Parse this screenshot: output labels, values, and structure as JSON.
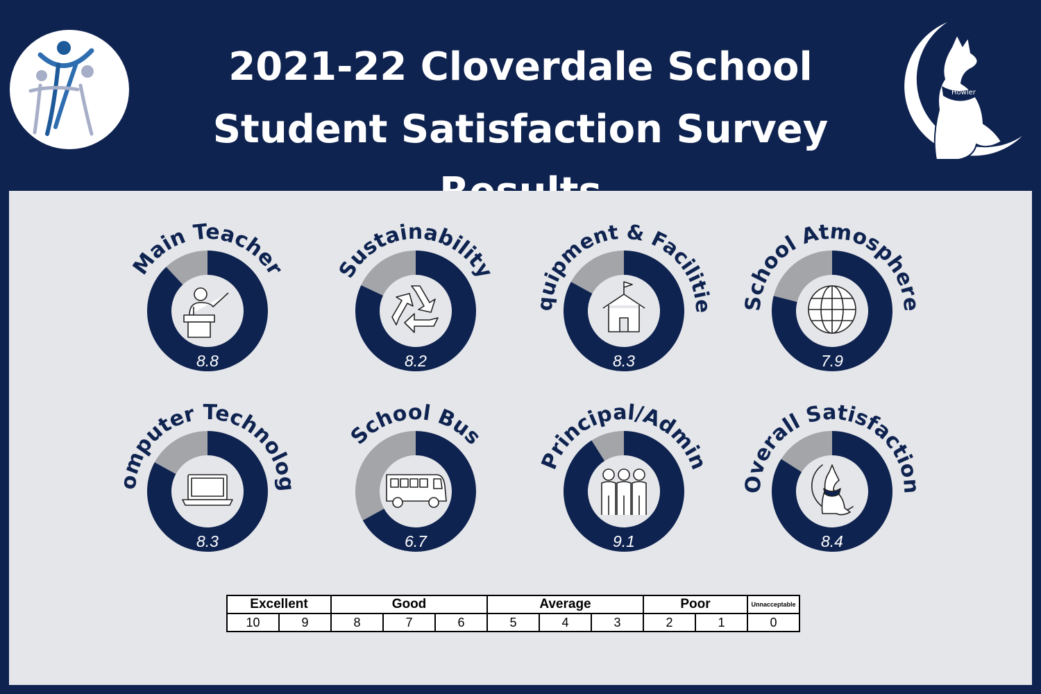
{
  "header": {
    "title_line1": "2021-22 Cloverdale School",
    "title_line2": "Student Satisfaction Survey Results",
    "mascot_label": "Howler"
  },
  "colors": {
    "navy": "#0f2350",
    "gray": "#a3a5a8",
    "panel": "#e4e6ea",
    "white": "#ffffff"
  },
  "chart_data": {
    "type": "pie",
    "max": 10,
    "items": [
      {
        "label": "Main Teacher",
        "value": 8.8,
        "icon": "teacher-icon"
      },
      {
        "label": "Sustainability",
        "value": 8.2,
        "icon": "recycle-icon"
      },
      {
        "label": "Equipment & Facilities",
        "value": 8.3,
        "icon": "schoolhouse-icon"
      },
      {
        "label": "School Atmosphere",
        "value": 7.9,
        "icon": "globe-icon"
      },
      {
        "label": "Computer Technology",
        "value": 8.3,
        "icon": "laptop-icon"
      },
      {
        "label": "School Bus",
        "value": 6.7,
        "icon": "bus-icon"
      },
      {
        "label": "Principal/Admin",
        "value": 9.1,
        "icon": "people-icon"
      },
      {
        "label": "Overall Satisfaction",
        "value": 8.4,
        "icon": "wolf-mascot-icon"
      }
    ]
  },
  "scale": {
    "categories": [
      "Excellent",
      "Good",
      "Average",
      "Poor",
      "Unnacceptable"
    ],
    "numbers": [
      "10",
      "9",
      "8",
      "7",
      "6",
      "5",
      "4",
      "3",
      "2",
      "1",
      "0"
    ]
  }
}
